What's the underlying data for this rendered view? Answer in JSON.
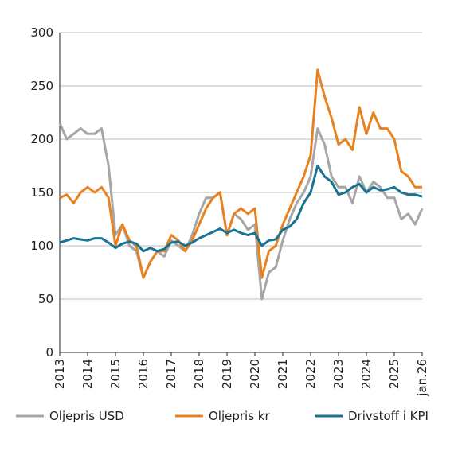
{
  "chart_data": {
    "type": "line",
    "x": [
      2013,
      2013.25,
      2013.5,
      2013.75,
      2014,
      2014.25,
      2014.5,
      2014.75,
      2015,
      2015.25,
      2015.5,
      2015.75,
      2016,
      2016.25,
      2016.5,
      2016.75,
      2017,
      2017.25,
      2017.5,
      2017.75,
      2018,
      2018.25,
      2018.5,
      2018.75,
      2019,
      2019.25,
      2019.5,
      2019.75,
      2020,
      2020.25,
      2020.5,
      2020.75,
      2021,
      2021.25,
      2021.5,
      2021.75,
      2022,
      2022.25,
      2022.5,
      2022.75,
      2023,
      2023.25,
      2023.5,
      2023.75,
      2024,
      2024.25,
      2024.5,
      2024.75,
      2025,
      2025.25,
      2025.5,
      2025.75,
      2026
    ],
    "series": [
      {
        "name": "Oljepris USD",
        "color": "#a6a6a6",
        "values": [
          215,
          200,
          205,
          210,
          205,
          205,
          210,
          175,
          110,
          120,
          100,
          95,
          70,
          85,
          95,
          90,
          105,
          100,
          95,
          110,
          130,
          145,
          145,
          150,
          110,
          130,
          125,
          115,
          120,
          50,
          75,
          80,
          105,
          125,
          140,
          150,
          165,
          210,
          195,
          165,
          155,
          155,
          140,
          165,
          150,
          160,
          155,
          145,
          145,
          125,
          130,
          120,
          135
        ]
      },
      {
        "name": "Oljepris kr",
        "color": "#e8821e",
        "values": [
          145,
          148,
          140,
          150,
          155,
          150,
          155,
          145,
          100,
          120,
          105,
          100,
          70,
          85,
          95,
          95,
          110,
          105,
          95,
          105,
          120,
          135,
          145,
          150,
          110,
          130,
          135,
          130,
          135,
          70,
          95,
          100,
          120,
          135,
          150,
          165,
          185,
          265,
          240,
          220,
          195,
          200,
          190,
          230,
          205,
          225,
          210,
          210,
          200,
          170,
          165,
          155,
          155
        ]
      },
      {
        "name": "Drivstoff i KPI",
        "color": "#1a7394",
        "values": [
          103,
          105,
          107,
          106,
          105,
          107,
          107,
          103,
          98,
          102,
          104,
          102,
          95,
          98,
          95,
          97,
          103,
          104,
          100,
          103,
          107,
          110,
          113,
          116,
          112,
          115,
          112,
          110,
          112,
          100,
          105,
          106,
          115,
          118,
          125,
          140,
          150,
          175,
          165,
          160,
          148,
          150,
          155,
          158,
          150,
          155,
          152,
          153,
          155,
          150,
          148,
          148,
          146
        ]
      }
    ],
    "xlim": [
      2013,
      2026
    ],
    "xticks": [
      2013,
      2014,
      2015,
      2016,
      2017,
      2018,
      2019,
      2020,
      2021,
      2022,
      2023,
      2024,
      2025,
      {
        "value": 2026,
        "label": "jan.26"
      }
    ],
    "ylim": [
      0,
      300
    ],
    "yticks": [
      0,
      50,
      100,
      150,
      200,
      250,
      300
    ],
    "grid": true
  }
}
